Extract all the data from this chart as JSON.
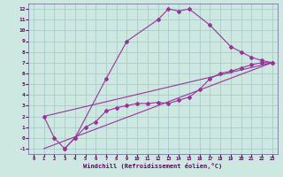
{
  "background_color": "#cce8e0",
  "grid_color": "#aacccc",
  "line_color": "#993399",
  "marker_color": "#993399",
  "xlabel": "Windchill (Refroidissement éolien,°C)",
  "xlabel_color": "#660066",
  "ylabel_color": "#660066",
  "xlim": [
    -0.5,
    23.5
  ],
  "ylim": [
    -1.5,
    12.5
  ],
  "xticks": [
    0,
    1,
    2,
    3,
    4,
    5,
    6,
    7,
    8,
    9,
    10,
    11,
    12,
    13,
    14,
    15,
    16,
    17,
    18,
    19,
    20,
    21,
    22,
    23
  ],
  "yticks": [
    -1,
    0,
    1,
    2,
    3,
    4,
    5,
    6,
    7,
    8,
    9,
    10,
    11,
    12
  ],
  "series1_x": [
    1,
    2,
    3,
    4,
    7,
    9,
    12,
    13,
    14,
    15,
    17,
    19,
    20,
    21,
    22,
    23
  ],
  "series1_y": [
    2,
    0,
    -1,
    0,
    5.5,
    9,
    11,
    12,
    11.8,
    12,
    10.5,
    8.5,
    8,
    7.5,
    7.2,
    7
  ],
  "series2_x": [
    1,
    23
  ],
  "series2_y": [
    2,
    7
  ],
  "series3_x": [
    1,
    23
  ],
  "series3_y": [
    -1,
    7
  ],
  "series4_x": [
    3,
    4,
    5,
    6,
    7,
    8,
    9,
    10,
    11,
    12,
    13,
    14,
    15,
    16,
    17,
    18,
    19,
    20,
    21,
    22,
    23
  ],
  "series4_y": [
    -1,
    0,
    1,
    1.5,
    2.5,
    2.8,
    3.0,
    3.2,
    3.2,
    3.3,
    3.2,
    3.5,
    3.8,
    4.5,
    5.5,
    6.0,
    6.2,
    6.5,
    6.8,
    7.0,
    7.0
  ]
}
